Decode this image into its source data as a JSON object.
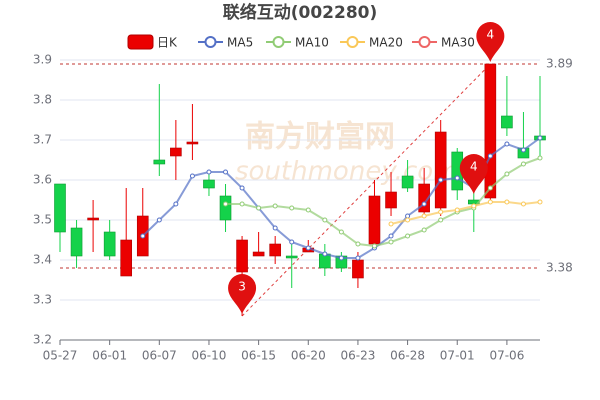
{
  "chart_data": {
    "type": "candlestick",
    "title": "联络互动(002280)",
    "categories": [
      "05-27",
      null,
      null,
      "06-01",
      null,
      null,
      "06-07",
      null,
      null,
      "06-10",
      null,
      null,
      "06-15",
      null,
      null,
      "06-20",
      null,
      null,
      "06-23",
      null,
      null,
      "06-28",
      null,
      null,
      "07-01",
      null,
      null,
      "07-06",
      null,
      null
    ],
    "candle_name": "日K",
    "up_color": "#eb0000",
    "down_color": "#14d24a",
    "open": [
      3.59,
      3.48,
      3.5,
      3.47,
      3.36,
      3.41,
      3.65,
      3.66,
      3.69,
      3.6,
      3.56,
      3.37,
      3.41,
      3.41,
      3.41,
      3.42,
      3.415,
      3.41,
      3.355,
      3.44,
      3.53,
      3.61,
      3.52,
      3.53,
      3.67,
      3.55,
      3.555,
      3.76,
      3.68,
      3.71
    ],
    "close": [
      3.47,
      3.41,
      3.505,
      3.41,
      3.45,
      3.51,
      3.64,
      3.68,
      3.695,
      3.58,
      3.5,
      3.45,
      3.42,
      3.44,
      3.405,
      3.43,
      3.38,
      3.38,
      3.4,
      3.56,
      3.57,
      3.58,
      3.59,
      3.72,
      3.575,
      3.54,
      3.89,
      3.73,
      3.655,
      3.7
    ],
    "high": [
      3.59,
      3.5,
      3.55,
      3.5,
      3.58,
      3.58,
      3.84,
      3.75,
      3.79,
      3.62,
      3.59,
      3.46,
      3.47,
      3.46,
      3.44,
      3.45,
      3.44,
      3.42,
      3.42,
      3.6,
      3.62,
      3.65,
      3.63,
      3.75,
      3.68,
      3.57,
      3.89,
      3.86,
      3.77,
      3.86
    ],
    "low": [
      3.42,
      3.38,
      3.42,
      3.4,
      3.36,
      3.41,
      3.61,
      3.6,
      3.65,
      3.56,
      3.47,
      3.26,
      3.41,
      3.39,
      3.33,
      3.42,
      3.36,
      3.37,
      3.33,
      3.43,
      3.51,
      3.57,
      3.51,
      3.51,
      3.55,
      3.47,
      3.55,
      3.71,
      3.66,
      3.65
    ],
    "series": [
      {
        "name": "MA5",
        "color": "#5470c6",
        "values": [
          null,
          null,
          null,
          null,
          null,
          3.46,
          3.5,
          3.54,
          3.61,
          3.62,
          3.62,
          3.58,
          3.53,
          3.48,
          3.445,
          3.43,
          3.415,
          3.405,
          3.405,
          3.43,
          3.46,
          3.51,
          3.54,
          3.6,
          3.605,
          3.58,
          3.66,
          3.69,
          3.675,
          3.705
        ]
      },
      {
        "name": "MA10",
        "color": "#91cc75",
        "values": [
          null,
          null,
          null,
          null,
          null,
          null,
          null,
          null,
          null,
          null,
          3.54,
          3.54,
          3.53,
          3.535,
          3.53,
          3.525,
          3.5,
          3.47,
          3.44,
          3.435,
          3.445,
          3.46,
          3.475,
          3.5,
          3.52,
          3.53,
          3.58,
          3.615,
          3.64,
          3.655
        ]
      },
      {
        "name": "MA20",
        "color": "#fac858",
        "values": [
          null,
          null,
          null,
          null,
          null,
          null,
          null,
          null,
          null,
          null,
          null,
          null,
          null,
          null,
          null,
          null,
          null,
          null,
          null,
          null,
          3.49,
          3.5,
          3.51,
          3.52,
          3.525,
          3.535,
          3.545,
          3.545,
          3.54,
          3.545
        ]
      },
      {
        "name": "MA30",
        "color": "#ee6666",
        "values": [
          null,
          null,
          null,
          null,
          null,
          null,
          null,
          null,
          null,
          null,
          null,
          null,
          null,
          null,
          null,
          null,
          null,
          null,
          null,
          null,
          null,
          null,
          null,
          null,
          null,
          null,
          null,
          null,
          null,
          null
        ]
      }
    ],
    "ylim": [
      3.2,
      3.9
    ],
    "yticks": [
      3.2,
      3.3,
      3.4,
      3.5,
      3.6,
      3.7,
      3.8,
      3.9
    ],
    "grid": true,
    "mark_lines": [
      3.89,
      3.38
    ],
    "mark_points": [
      {
        "label": "3",
        "index": 11,
        "value": 3.26
      },
      {
        "label": "4",
        "index": 25,
        "value": 3.56
      },
      {
        "label": "4",
        "index": 26,
        "value": 3.89
      }
    ],
    "watermark": [
      "南方财富网",
      "southmoney.com"
    ]
  }
}
